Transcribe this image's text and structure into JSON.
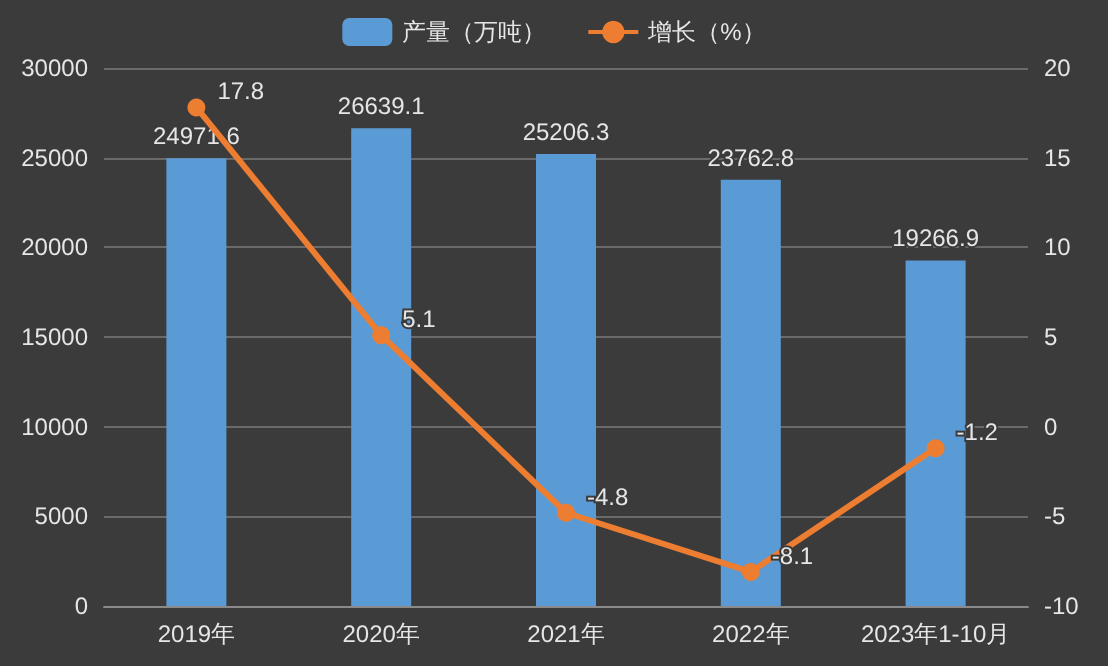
{
  "chart_data": {
    "type": "bar",
    "categories": [
      "2019年",
      "2020年",
      "2021年",
      "2022年",
      "2023年1-10月"
    ],
    "series": [
      {
        "name": "产量（万吨）",
        "color": "#5b9bd5",
        "values": [
          24971.6,
          26639.1,
          25206.3,
          23762.8,
          19266.9
        ]
      },
      {
        "name": "增长（%）",
        "type": "line",
        "axis": "y2",
        "color": "#ed7d31",
        "values": [
          17.8,
          5.1,
          -4.8,
          -8.1,
          -1.2
        ]
      }
    ],
    "ylim": [
      0,
      30000
    ],
    "yticks": [
      0,
      5000,
      10000,
      15000,
      20000,
      25000,
      30000
    ],
    "y2lim": [
      -10,
      20
    ],
    "y2ticks": [
      -10,
      -5,
      0,
      5,
      10,
      15,
      20
    ],
    "grid": "y",
    "legend": "top",
    "data_labels": true,
    "marker": "circle"
  }
}
